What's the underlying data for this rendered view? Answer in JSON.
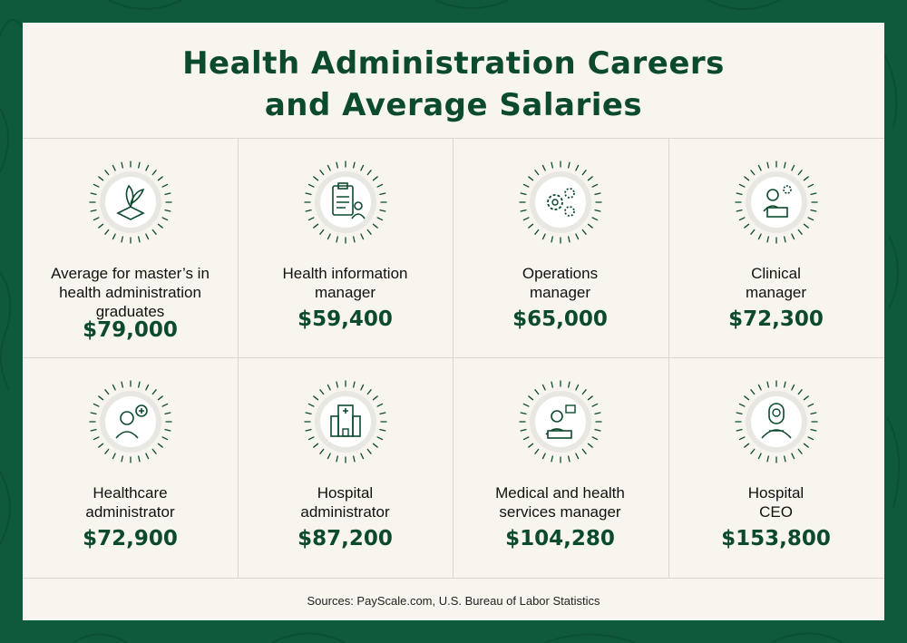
{
  "title_line1": "Health Administration Careers",
  "title_line2": "and Average Salaries",
  "colors": {
    "brand_green": "#0e5a3a",
    "card_bg": "#f8f5ee",
    "text_green": "#0c4a2e"
  },
  "careers": [
    {
      "label_line1": "Average for master’s in",
      "label_line2": "health administration",
      "label_line3": "graduates",
      "salary": "$79,000",
      "icon": "graduation-cap-leaves-icon"
    },
    {
      "label_line1": "Health information",
      "label_line2": "manager",
      "salary": "$59,400",
      "icon": "clipboard-person-icon"
    },
    {
      "label_line1": "Operations",
      "label_line2": "manager",
      "salary": "$65,000",
      "icon": "gears-person-icon"
    },
    {
      "label_line1": "Clinical",
      "label_line2": "manager",
      "salary": "$72,300",
      "icon": "doctor-laptop-icon"
    },
    {
      "label_line1": "Healthcare",
      "label_line2": "administrator",
      "salary": "$72,900",
      "icon": "doctor-plus-icon"
    },
    {
      "label_line1": "Hospital",
      "label_line2": "administrator",
      "salary": "$87,200",
      "icon": "hospital-building-icon"
    },
    {
      "label_line1": "Medical and health",
      "label_line2": "services manager",
      "salary": "$104,280",
      "icon": "doctor-monitor-icon"
    },
    {
      "label_line1": "Hospital",
      "label_line2": "CEO",
      "salary": "$153,800",
      "icon": "executive-person-icon"
    }
  ],
  "sources": "Sources: PayScale.com, U.S. Bureau of Labor Statistics"
}
